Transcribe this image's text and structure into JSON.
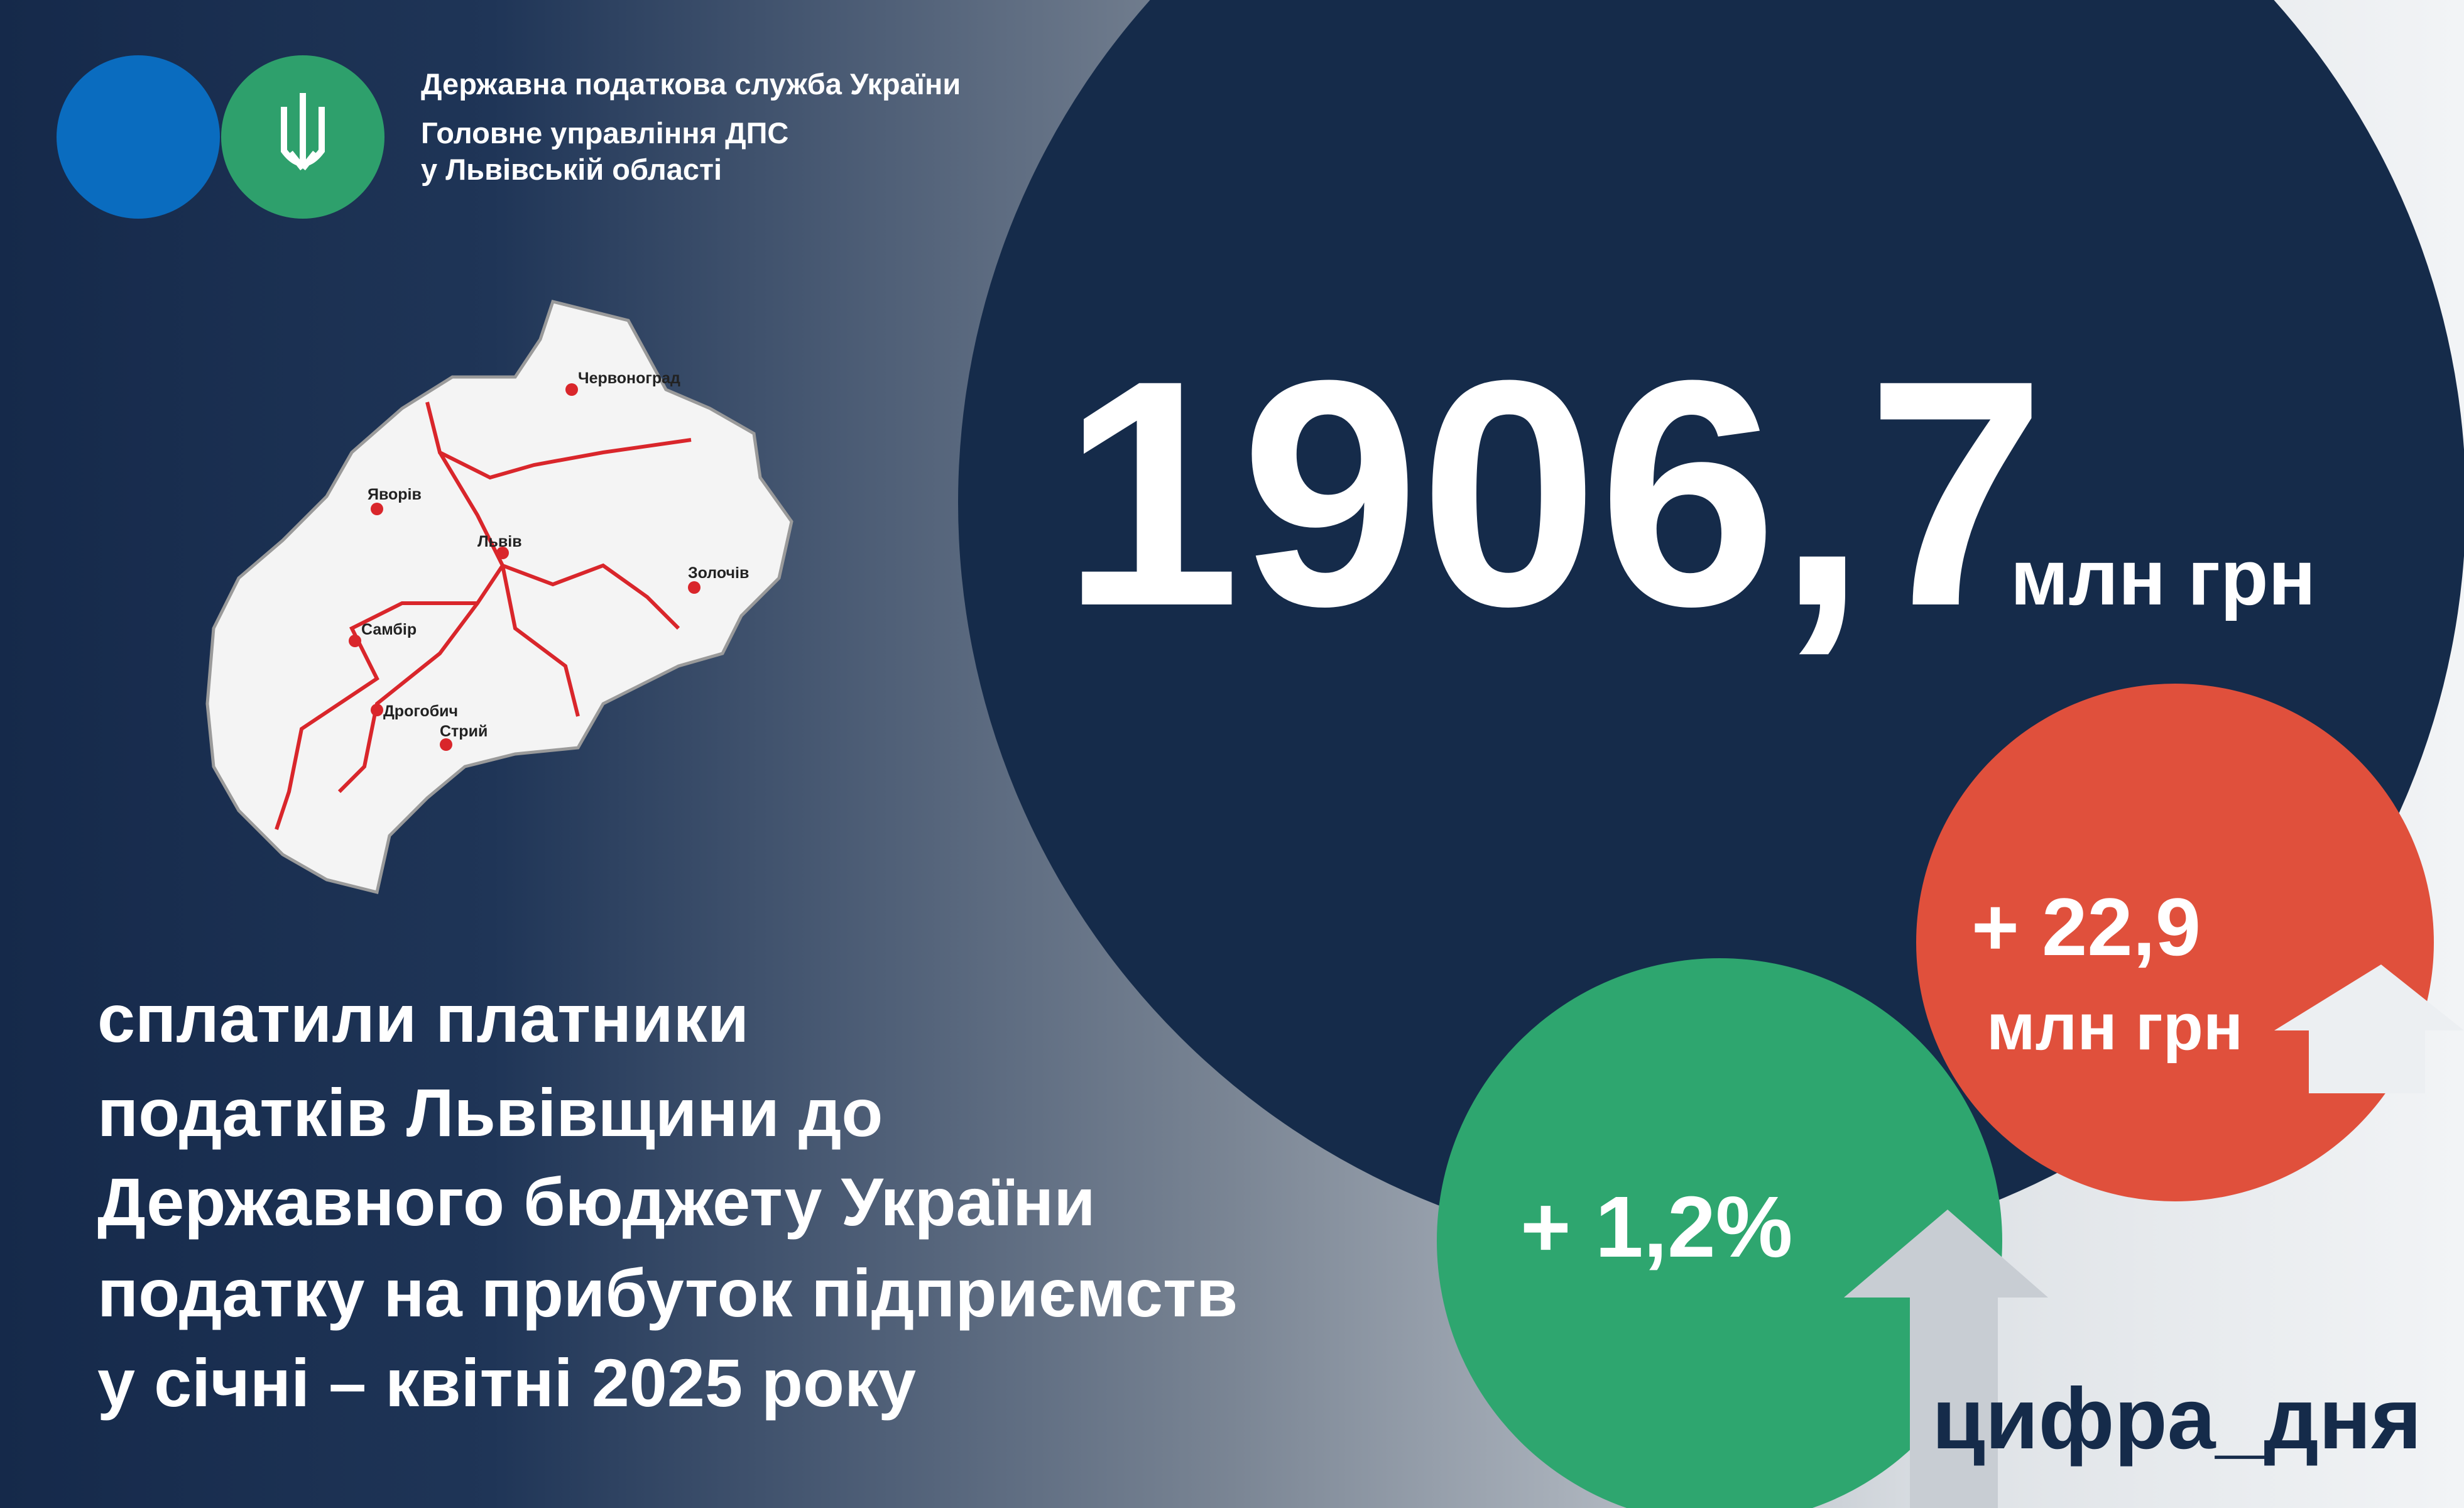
{
  "header": {
    "lines": [
      "Державна податкова служба України",
      "Головне управління ДПС",
      "у Львівській області"
    ]
  },
  "map": {
    "cities": [
      "Червоноград",
      "Яворів",
      "Львів",
      "Золочів",
      "Самбір",
      "Дрогобич",
      "Стрий"
    ]
  },
  "main": {
    "value": "1906,7",
    "unit": "млн грн"
  },
  "description": {
    "lines": [
      "сплатили платники",
      "податків Львівщини до",
      "Державного бюджету України",
      "податку на прибуток підприємств",
      "у січні – квітні 2025 року"
    ]
  },
  "growth_percent": {
    "text": "+ 1,2%"
  },
  "growth_amount": {
    "value": "+ 22,9",
    "unit": "млн грн"
  },
  "hashtag": "цифра_дня"
}
